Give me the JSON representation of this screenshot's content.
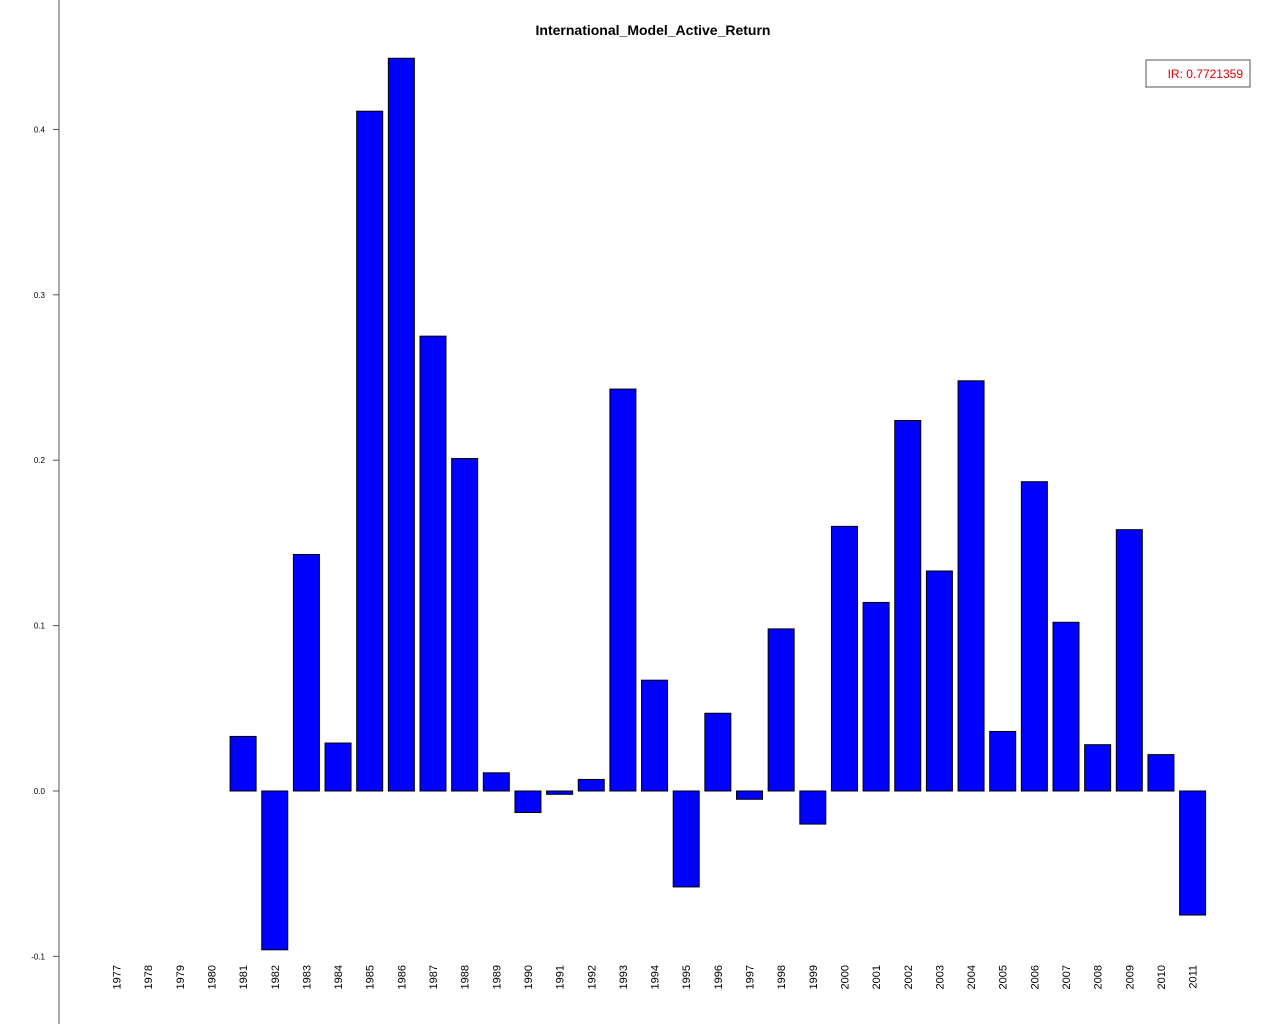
{
  "chart_data": {
    "type": "bar",
    "title": "International_Model_Active_Return",
    "xlabel": "",
    "ylabel": "",
    "categories": [
      "1977",
      "1978",
      "1979",
      "1980",
      "1981",
      "1982",
      "1983",
      "1984",
      "1985",
      "1986",
      "1987",
      "1988",
      "1989",
      "1990",
      "1991",
      "1992",
      "1993",
      "1994",
      "1995",
      "1996",
      "1997",
      "1998",
      "1999",
      "2000",
      "2001",
      "2002",
      "2003",
      "2004",
      "2005",
      "2006",
      "2007",
      "2008",
      "2009",
      "2010",
      "2011"
    ],
    "values": [
      0,
      0,
      0,
      0,
      0.033,
      -0.096,
      0.143,
      0.029,
      0.411,
      0.443,
      0.275,
      0.201,
      0.011,
      -0.013,
      -0.002,
      0.007,
      0.243,
      0.067,
      -0.058,
      0.047,
      -0.005,
      0.098,
      -0.02,
      0.16,
      0.114,
      0.224,
      0.133,
      0.248,
      0.036,
      0.187,
      0.102,
      0.028,
      0.158,
      0.022,
      -0.075
    ],
    "ylim": [
      -0.1,
      0.44
    ],
    "y_ticks": [
      "-0.1",
      "0.0",
      "0.1",
      "0.2",
      "0.3",
      "0.4"
    ],
    "grid": false,
    "legend_placement": "top-right",
    "legend_text": "IR: 0.7721359",
    "colors": {
      "bar_fill": "#0000ff",
      "bar_stroke": "#000000",
      "legend_text": "#dd0000"
    }
  }
}
